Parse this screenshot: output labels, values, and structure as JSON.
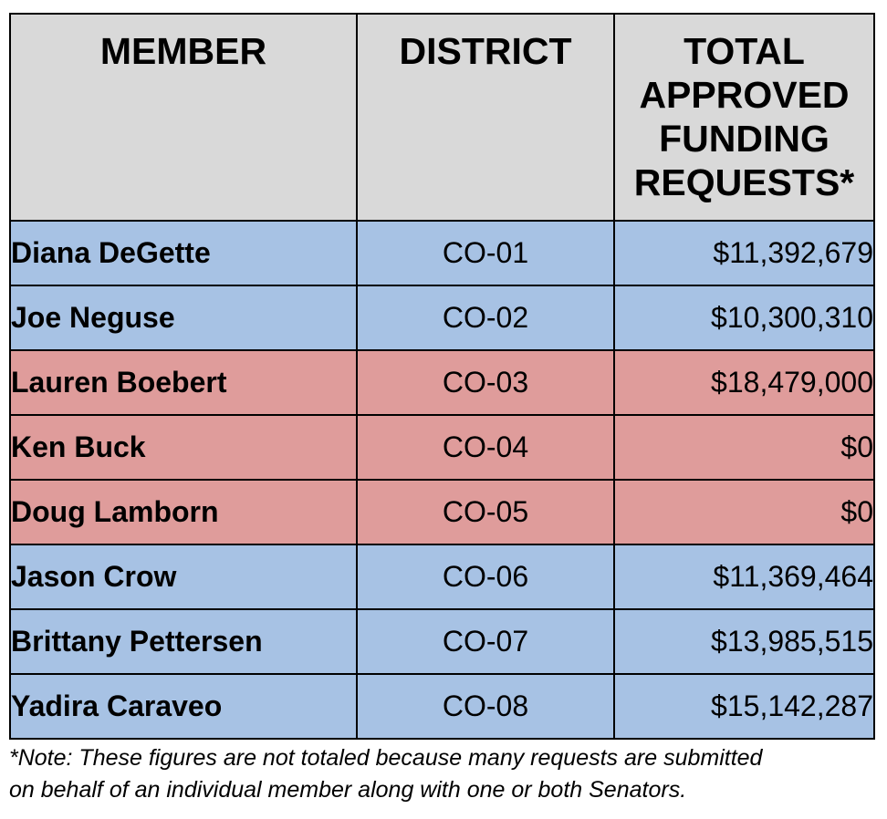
{
  "headers": {
    "member": "MEMBER",
    "district": "DISTRICT",
    "total": "TOTAL APPROVED FUNDING REQUESTS*"
  },
  "rows": [
    {
      "member": "Diana DeGette",
      "district": "CO-01",
      "amount": "$11,392,679",
      "party_color": "#a7c2e4"
    },
    {
      "member": "Joe Neguse",
      "district": "CO-02",
      "amount": "$10,300,310",
      "party_color": "#a7c2e4"
    },
    {
      "member": "Lauren Boebert",
      "district": "CO-03",
      "amount": "$18,479,000",
      "party_color": "#df9c9b"
    },
    {
      "member": "Ken Buck",
      "district": "CO-04",
      "amount": "$0",
      "party_color": "#df9c9b"
    },
    {
      "member": "Doug Lamborn",
      "district": "CO-05",
      "amount": "$0",
      "party_color": "#df9c9b"
    },
    {
      "member": "Jason Crow",
      "district": "CO-06",
      "amount": "$11,369,464",
      "party_color": "#a7c2e4"
    },
    {
      "member": "Brittany Pettersen",
      "district": "CO-07",
      "amount": "$13,985,515",
      "party_color": "#a7c2e4"
    },
    {
      "member": "Yadira Caraveo",
      "district": "CO-08",
      "amount": "$15,142,287",
      "party_color": "#a7c2e4"
    }
  ],
  "note": {
    "line1": "*Note: These figures are not totaled because many requests are submitted",
    "line2": "on behalf of an individual member along with one or both Senators."
  },
  "colors": {
    "header_bg": "#d9d9d9",
    "democrat_row": "#a7c2e4",
    "republican_row": "#df9c9b"
  }
}
